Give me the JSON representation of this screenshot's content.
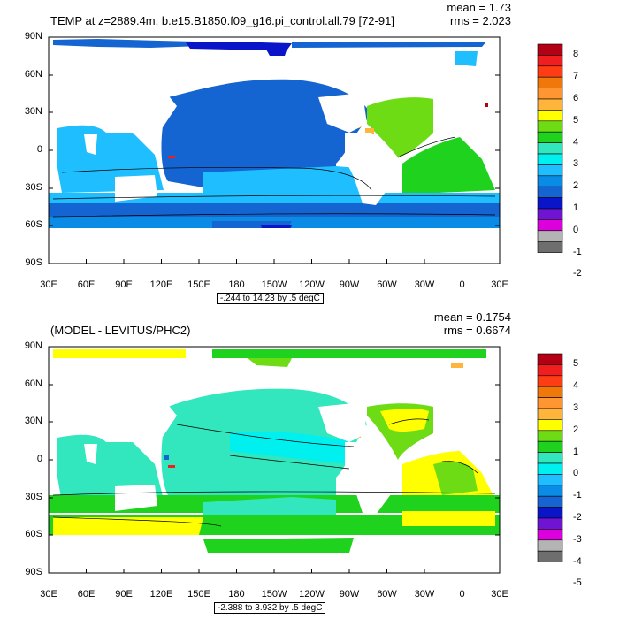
{
  "panels": [
    {
      "title": "TEMP at z=2889.4m, b.e15.B1850.f09_g16.pi_control.all.79 [72-91]",
      "mean": "mean = 1.73",
      "rms": "rms = 2.023",
      "range_label": "-.244 to 14.23 by .5 degC",
      "y_labels": [
        "90N",
        "60N",
        "30N",
        "0",
        "30S",
        "60S",
        "90S"
      ],
      "x_labels": [
        "30E",
        "60E",
        "90E",
        "120E",
        "150E",
        "180",
        "150W",
        "120W",
        "90W",
        "60W",
        "30W",
        "0",
        "30E"
      ],
      "colorbar": {
        "labels": [
          "8",
          "7",
          "6",
          "5",
          "4",
          "3",
          "2",
          "1",
          "0",
          "-1",
          "-2"
        ],
        "colors": [
          "#b40014",
          "#f01e1e",
          "#ff3c14",
          "#f0780a",
          "#ff9632",
          "#ffb43c",
          "#ffff00",
          "#6edc14",
          "#1ed21e",
          "#32e6be",
          "#00f0f0",
          "#1ebeff",
          "#0a8ce6",
          "#1464d2",
          "#0a14c8",
          "#6e14d2",
          "#dc00dc",
          "#b4b4b4",
          "#6e6e6e"
        ]
      }
    },
    {
      "title": "(MODEL - LEVITUS/PHC2)",
      "mean": "mean = 0.1754",
      "rms": "rms = 0.6674",
      "range_label": "-2.388 to 3.932 by .5 degC",
      "y_labels": [
        "90N",
        "60N",
        "30N",
        "0",
        "30S",
        "60S",
        "90S"
      ],
      "x_labels": [
        "30E",
        "60E",
        "90E",
        "120E",
        "150E",
        "180",
        "150W",
        "120W",
        "90W",
        "60W",
        "30W",
        "0",
        "30E"
      ],
      "colorbar": {
        "labels": [
          "5",
          "4",
          "3",
          "2",
          "1",
          "0",
          "-1",
          "-2",
          "-3",
          "-4",
          "-5"
        ],
        "colors": [
          "#b40014",
          "#f01e1e",
          "#ff3c14",
          "#f0780a",
          "#ff9632",
          "#ffb43c",
          "#ffff00",
          "#6edc14",
          "#1ed21e",
          "#32e6be",
          "#00f0f0",
          "#1ebeff",
          "#0a8ce6",
          "#1464d2",
          "#0a14c8",
          "#6e14d2",
          "#dc00dc",
          "#b4b4b4",
          "#6e6e6e"
        ]
      }
    }
  ]
}
